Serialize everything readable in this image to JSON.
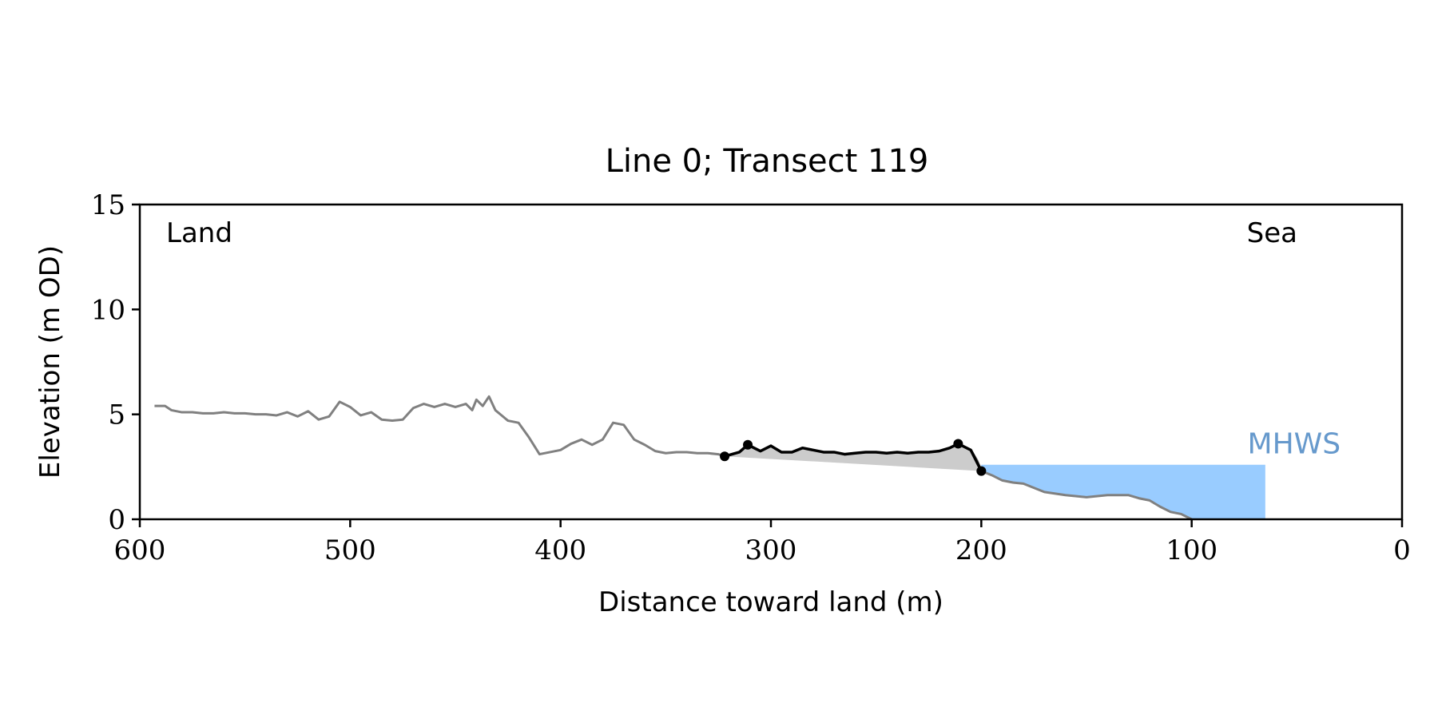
{
  "chart_data": {
    "type": "line",
    "title": "Line 0; Transect 119",
    "xlabel": "Distance toward land (m)",
    "ylabel": "Elevation (m OD)",
    "xlim": [
      600,
      0
    ],
    "ylim": [
      0,
      15
    ],
    "xticks": [
      600,
      500,
      400,
      300,
      200,
      100,
      0
    ],
    "yticks": [
      0,
      5,
      10,
      15
    ],
    "xtick_labels": [
      "600",
      "500",
      "400",
      "300",
      "200",
      "100",
      "0"
    ],
    "ytick_labels": [
      "0",
      "5",
      "10",
      "15"
    ],
    "grid": false,
    "annotations": {
      "land": "Land",
      "sea": "Sea",
      "mhws": "MHWS"
    },
    "colors": {
      "profile": "#808080",
      "dune": "#000000",
      "dune_fill": "#cccccc",
      "water": "#99ccff",
      "mhws_text": "#6699cc"
    },
    "mhws_level": 2.6,
    "water_x_range": [
      200,
      65
    ],
    "profile": {
      "x": [
        593,
        588,
        585,
        580,
        575,
        570,
        565,
        560,
        555,
        550,
        545,
        540,
        535,
        530,
        525,
        520,
        515,
        510,
        505,
        500,
        495,
        490,
        485,
        480,
        475,
        470,
        465,
        460,
        455,
        450,
        445,
        442,
        440,
        437,
        434,
        431,
        428,
        425,
        420,
        415,
        410,
        405,
        400,
        395,
        390,
        385,
        380,
        375,
        370,
        365,
        360,
        355,
        350,
        345,
        340,
        335,
        330,
        325,
        322,
        320,
        315,
        311,
        305,
        300,
        295,
        290,
        285,
        280,
        275,
        270,
        265,
        260,
        255,
        250,
        245,
        240,
        235,
        230,
        225,
        220,
        215,
        211,
        205,
        202,
        200,
        195,
        190,
        185,
        180,
        175,
        170,
        160,
        150,
        140,
        135,
        130,
        125,
        120,
        115,
        110,
        105,
        100
      ],
      "y": [
        5.4,
        5.4,
        5.2,
        5.1,
        5.1,
        5.05,
        5.05,
        5.1,
        5.05,
        5.05,
        5.0,
        5.0,
        4.95,
        5.1,
        4.9,
        5.15,
        4.75,
        4.9,
        5.6,
        5.35,
        4.95,
        5.1,
        4.75,
        4.7,
        4.75,
        5.3,
        5.5,
        5.35,
        5.5,
        5.35,
        5.5,
        5.2,
        5.7,
        5.4,
        5.85,
        5.2,
        4.95,
        4.7,
        4.6,
        3.9,
        3.1,
        3.2,
        3.3,
        3.6,
        3.8,
        3.55,
        3.8,
        4.6,
        4.5,
        3.8,
        3.55,
        3.25,
        3.15,
        3.2,
        3.2,
        3.15,
        3.15,
        3.1,
        3.0,
        3.05,
        3.2,
        3.55,
        3.25,
        3.5,
        3.2,
        3.2,
        3.4,
        3.3,
        3.2,
        3.2,
        3.1,
        3.15,
        3.2,
        3.2,
        3.15,
        3.2,
        3.15,
        3.2,
        3.2,
        3.25,
        3.4,
        3.6,
        3.3,
        2.8,
        2.3,
        2.1,
        1.85,
        1.75,
        1.7,
        1.5,
        1.3,
        1.15,
        1.05,
        1.15,
        1.15,
        1.15,
        1.0,
        0.9,
        0.6,
        0.35,
        0.25,
        0.0
      ]
    },
    "dune": {
      "x": [
        322,
        315,
        311,
        305,
        300,
        295,
        290,
        285,
        280,
        275,
        270,
        265,
        260,
        255,
        250,
        245,
        240,
        235,
        230,
        225,
        220,
        215,
        211,
        205,
        200
      ],
      "y": [
        3.0,
        3.2,
        3.55,
        3.25,
        3.5,
        3.2,
        3.2,
        3.4,
        3.3,
        3.2,
        3.2,
        3.1,
        3.15,
        3.2,
        3.2,
        3.15,
        3.2,
        3.15,
        3.2,
        3.2,
        3.25,
        3.4,
        3.6,
        3.3,
        2.3
      ],
      "markers": [
        {
          "x": 322,
          "y": 3.0
        },
        {
          "x": 311,
          "y": 3.55
        },
        {
          "x": 211,
          "y": 3.6
        },
        {
          "x": 200,
          "y": 2.3
        }
      ]
    }
  }
}
